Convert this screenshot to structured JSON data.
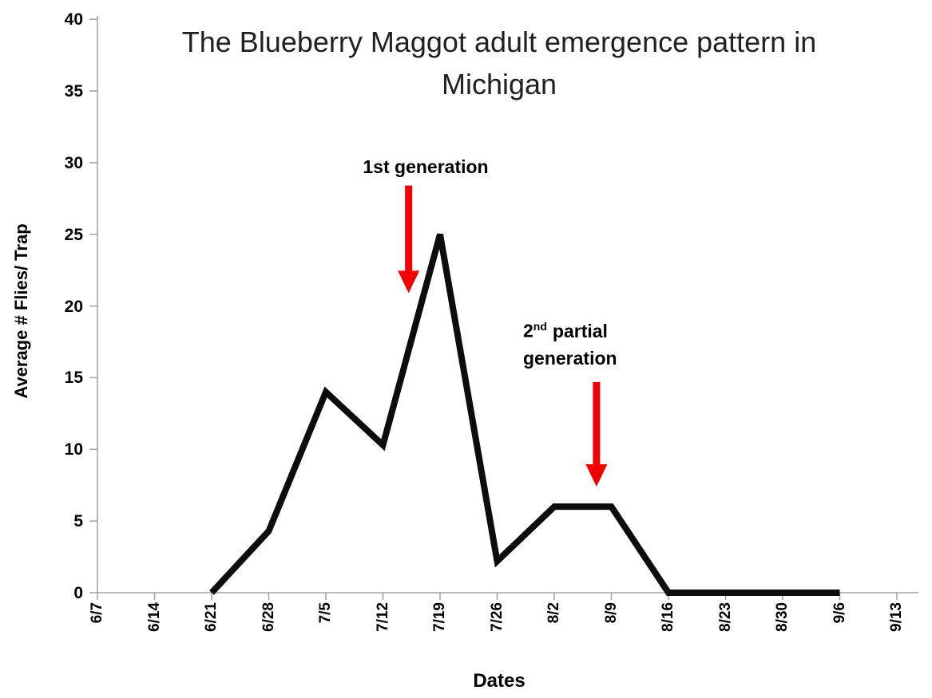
{
  "title": {
    "line1": "The Blueberry Maggot adult emergence pattern in",
    "line2": "Michigan"
  },
  "annotations": {
    "first": {
      "label": "1st generation"
    },
    "second": {
      "base": "2",
      "sup": "nd",
      "rest": "partial",
      "line2": "generation"
    }
  },
  "colors": {
    "series": "#0d0d0d",
    "arrow": "#f20000",
    "axis": "#a6a6a6",
    "text": "#000000"
  },
  "chart_data": {
    "type": "line",
    "title": "The Blueberry Maggot adult emergence pattern in Michigan",
    "xlabel": "Dates",
    "ylabel": "Average # Flies/ Trap",
    "categories": [
      "6/7",
      "6/14",
      "6/21",
      "6/28",
      "7/5",
      "7/12",
      "7/19",
      "7/26",
      "8/2",
      "8/9",
      "8/16",
      "8/23",
      "8/30",
      "9/6",
      "9/13"
    ],
    "series": [
      {
        "name": "Average # Flies/ Trap",
        "values": [
          null,
          null,
          0,
          4.3,
          14,
          10.3,
          25,
          2.2,
          6,
          6,
          0,
          0,
          0,
          0,
          null
        ]
      }
    ],
    "ylim": [
      0,
      40
    ],
    "ytick_step": 5,
    "grid": false,
    "legend": "none",
    "annotations": [
      {
        "text": "1st generation",
        "arrow": {
          "x_index": 5.45,
          "y_from": 28.4,
          "y_to": 20.9
        }
      },
      {
        "text": "2nd partial generation",
        "arrow": {
          "x_index": 8.74,
          "y_from": 14.7,
          "y_to": 7.4
        }
      }
    ]
  }
}
